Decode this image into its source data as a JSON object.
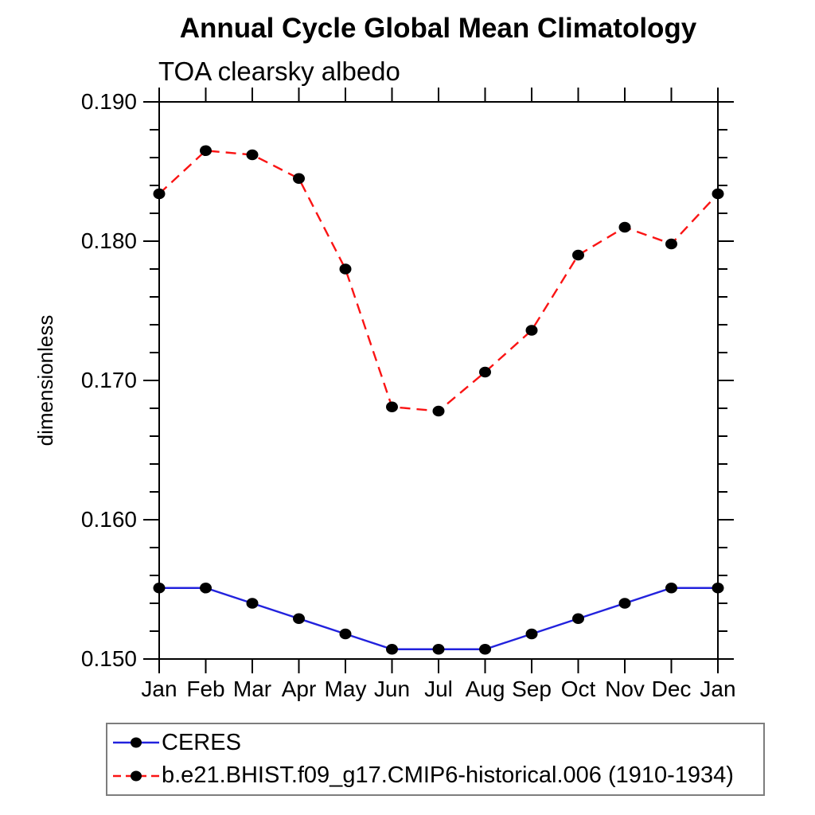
{
  "header": {
    "title": "Annual Cycle Global Mean Climatology",
    "subtitle": "TOA clearsky albedo"
  },
  "chart_data": {
    "type": "line",
    "title": "Annual Cycle Global Mean Climatology",
    "subtitle": "TOA clearsky albedo",
    "xlabel": "",
    "ylabel": "dimensionless",
    "categories": [
      "Jan",
      "Feb",
      "Mar",
      "Apr",
      "May",
      "Jun",
      "Jul",
      "Aug",
      "Sep",
      "Oct",
      "Nov",
      "Dec",
      "Jan"
    ],
    "ylim": [
      0.15,
      0.19
    ],
    "ytick_labels": [
      "0.150",
      "0.160",
      "0.170",
      "0.180",
      "0.190"
    ],
    "ytick_major_step": 0.01,
    "ytick_minor_step": 0.002,
    "grid": false,
    "frame_color": "#000000",
    "legend_position": "bottom-left-box",
    "series": [
      {
        "name": "CERES",
        "color": "#2222dd",
        "line_style": "solid",
        "marker": "circle",
        "marker_color": "#000000",
        "values": [
          0.1551,
          0.1551,
          0.154,
          0.1529,
          0.1518,
          0.1507,
          0.1507,
          0.1507,
          0.1518,
          0.1529,
          0.154,
          0.1551,
          0.1551
        ]
      },
      {
        "name": "b.e21.BHIST.f09_g17.CMIP6-historical.006 (1910-1934)",
        "color": "#fa1414",
        "line_style": "dashed",
        "marker": "circle",
        "marker_color": "#000000",
        "values": [
          0.1834,
          0.1865,
          0.1862,
          0.1845,
          0.178,
          0.1681,
          0.1678,
          0.1706,
          0.1736,
          0.179,
          0.181,
          0.1798,
          0.1834
        ]
      }
    ]
  }
}
